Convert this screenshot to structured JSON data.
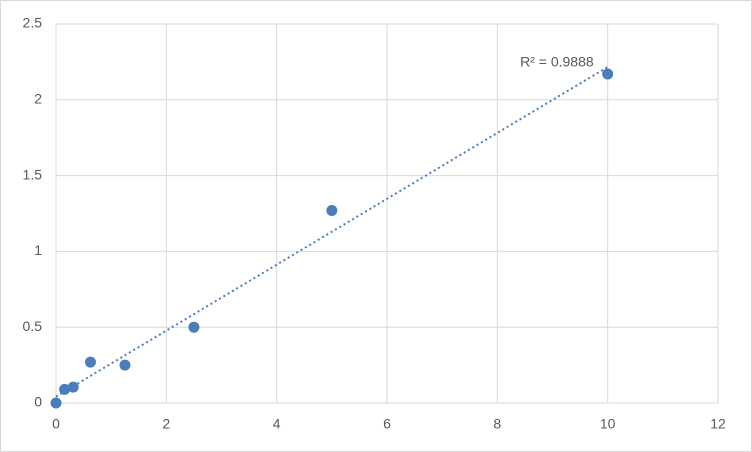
{
  "chart_data": {
    "type": "scatter",
    "series": [
      {
        "color": "#4a7ebb",
        "x": [
          0,
          0.156,
          0.3125,
          0.625,
          1.25,
          2.5,
          5,
          10
        ],
        "values": [
          0,
          0.09,
          0.105,
          0.27,
          0.25,
          0.5,
          1.27,
          2.17
        ]
      }
    ],
    "trendline": "linear",
    "annotation": "R² = 0.9888",
    "xlim": [
      0,
      12
    ],
    "xticks": [
      0,
      2,
      4,
      6,
      8,
      10,
      12
    ],
    "ylim": [
      0,
      2.5
    ],
    "yticks": [
      0,
      0.5,
      1,
      1.5,
      2,
      2.5
    ],
    "grid": true
  }
}
